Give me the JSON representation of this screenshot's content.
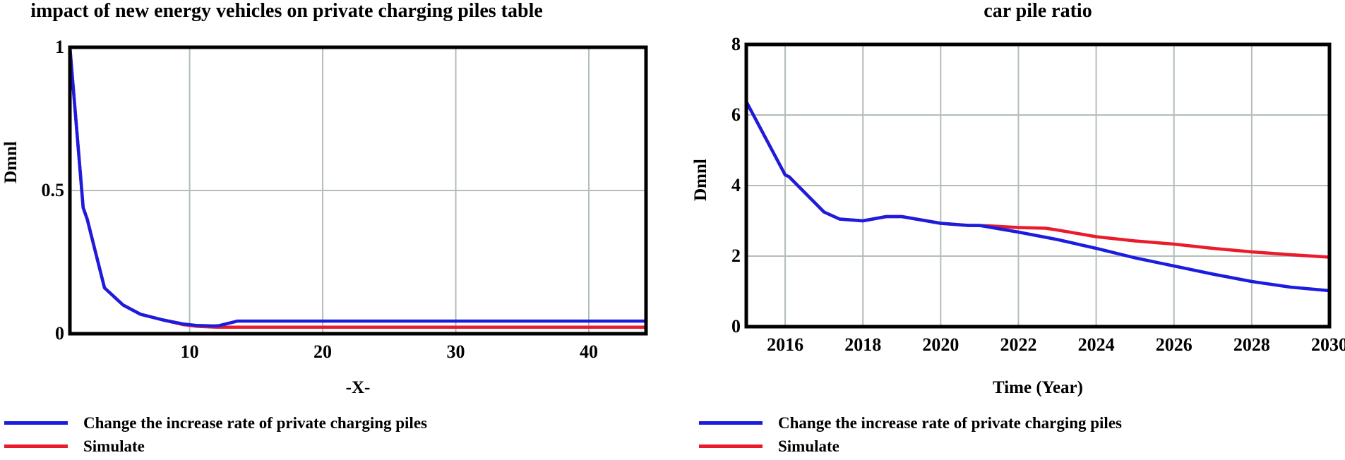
{
  "ui_colors": {
    "background": "#ffffff",
    "grid": "#b2beb6",
    "axis": "#000000",
    "blue_series": "#1c1cdf",
    "red_series": "#ea1c2c"
  },
  "chart_data": [
    {
      "type": "line",
      "title": "impact of new energy vehicles on private charging piles table",
      "xlabel": "-X-",
      "ylabel": "Dmnl",
      "xlim": [
        1,
        44.3
      ],
      "ylim": [
        0,
        1
      ],
      "xticks": [
        10,
        20,
        30,
        40
      ],
      "xtick_labels": [
        "10",
        "20",
        "30",
        "40"
      ],
      "yticks": [
        0,
        0.5,
        1
      ],
      "ytick_labels": [
        "0",
        "0.5",
        "1"
      ],
      "grid": true,
      "legend_position": "below-left",
      "series": [
        {
          "name": "Change the increase rate of private charging piles",
          "color": "#1c1cdf",
          "points": [
            [
              1,
              1.0
            ],
            [
              2,
              0.44
            ],
            [
              2.3,
              0.4
            ],
            [
              3.6,
              0.16
            ],
            [
              5,
              0.1
            ],
            [
              6.3,
              0.068
            ],
            [
              8,
              0.048
            ],
            [
              9.5,
              0.034
            ],
            [
              10.5,
              0.029
            ],
            [
              11.8,
              0.027
            ],
            [
              12.2,
              0.028
            ],
            [
              13.6,
              0.044
            ],
            [
              44.3,
              0.044
            ]
          ]
        },
        {
          "name": "Simulate",
          "color": "#ea1c2c",
          "points": [
            [
              1,
              1.0
            ],
            [
              2,
              0.44
            ],
            [
              2.3,
              0.4
            ],
            [
              3.6,
              0.16
            ],
            [
              5,
              0.1
            ],
            [
              6.3,
              0.068
            ],
            [
              8,
              0.048
            ],
            [
              9.5,
              0.032
            ],
            [
              10.5,
              0.026
            ],
            [
              12,
              0.023
            ],
            [
              44.3,
              0.023
            ]
          ]
        }
      ]
    },
    {
      "type": "line",
      "title": "car pile ratio",
      "xlabel": "Time (Year)",
      "ylabel": "Dmnl",
      "xlim": [
        2015,
        2030
      ],
      "ylim": [
        0,
        8
      ],
      "xticks": [
        2016,
        2018,
        2020,
        2022,
        2024,
        2026,
        2028,
        2030
      ],
      "xtick_labels": [
        "2016",
        "2018",
        "2020",
        "2022",
        "2024",
        "2026",
        "2028",
        "2030"
      ],
      "yticks": [
        0,
        2,
        4,
        6,
        8
      ],
      "ytick_labels": [
        "0",
        "2",
        "4",
        "6",
        "8"
      ],
      "grid": true,
      "legend_position": "below-left",
      "series": [
        {
          "name": "Change the increase rate of private charging piles",
          "color": "#1c1cdf",
          "points": [
            [
              2015,
              6.38
            ],
            [
              2016,
              4.3
            ],
            [
              2016.1,
              4.25
            ],
            [
              2017,
              3.25
            ],
            [
              2017.4,
              3.05
            ],
            [
              2018,
              3.0
            ],
            [
              2018.6,
              3.12
            ],
            [
              2019,
              3.12
            ],
            [
              2020,
              2.93
            ],
            [
              2020.7,
              2.87
            ],
            [
              2021,
              2.87
            ],
            [
              2022,
              2.68
            ],
            [
              2023,
              2.47
            ],
            [
              2024,
              2.22
            ],
            [
              2025,
              1.95
            ],
            [
              2026,
              1.72
            ],
            [
              2027,
              1.49
            ],
            [
              2028,
              1.28
            ],
            [
              2029,
              1.12
            ],
            [
              2030,
              1.02
            ]
          ]
        },
        {
          "name": "Simulate",
          "color": "#ea1c2c",
          "points": [
            [
              2015,
              6.38
            ],
            [
              2016,
              4.3
            ],
            [
              2016.1,
              4.25
            ],
            [
              2017,
              3.25
            ],
            [
              2017.4,
              3.05
            ],
            [
              2018,
              3.0
            ],
            [
              2018.6,
              3.12
            ],
            [
              2019,
              3.12
            ],
            [
              2020,
              2.93
            ],
            [
              2020.7,
              2.87
            ],
            [
              2021.2,
              2.86
            ],
            [
              2022,
              2.81
            ],
            [
              2022.7,
              2.79
            ],
            [
              2023,
              2.74
            ],
            [
              2024,
              2.55
            ],
            [
              2025,
              2.43
            ],
            [
              2026,
              2.34
            ],
            [
              2027,
              2.22
            ],
            [
              2028,
              2.12
            ],
            [
              2029,
              2.04
            ],
            [
              2030,
              1.97
            ]
          ]
        }
      ]
    }
  ]
}
